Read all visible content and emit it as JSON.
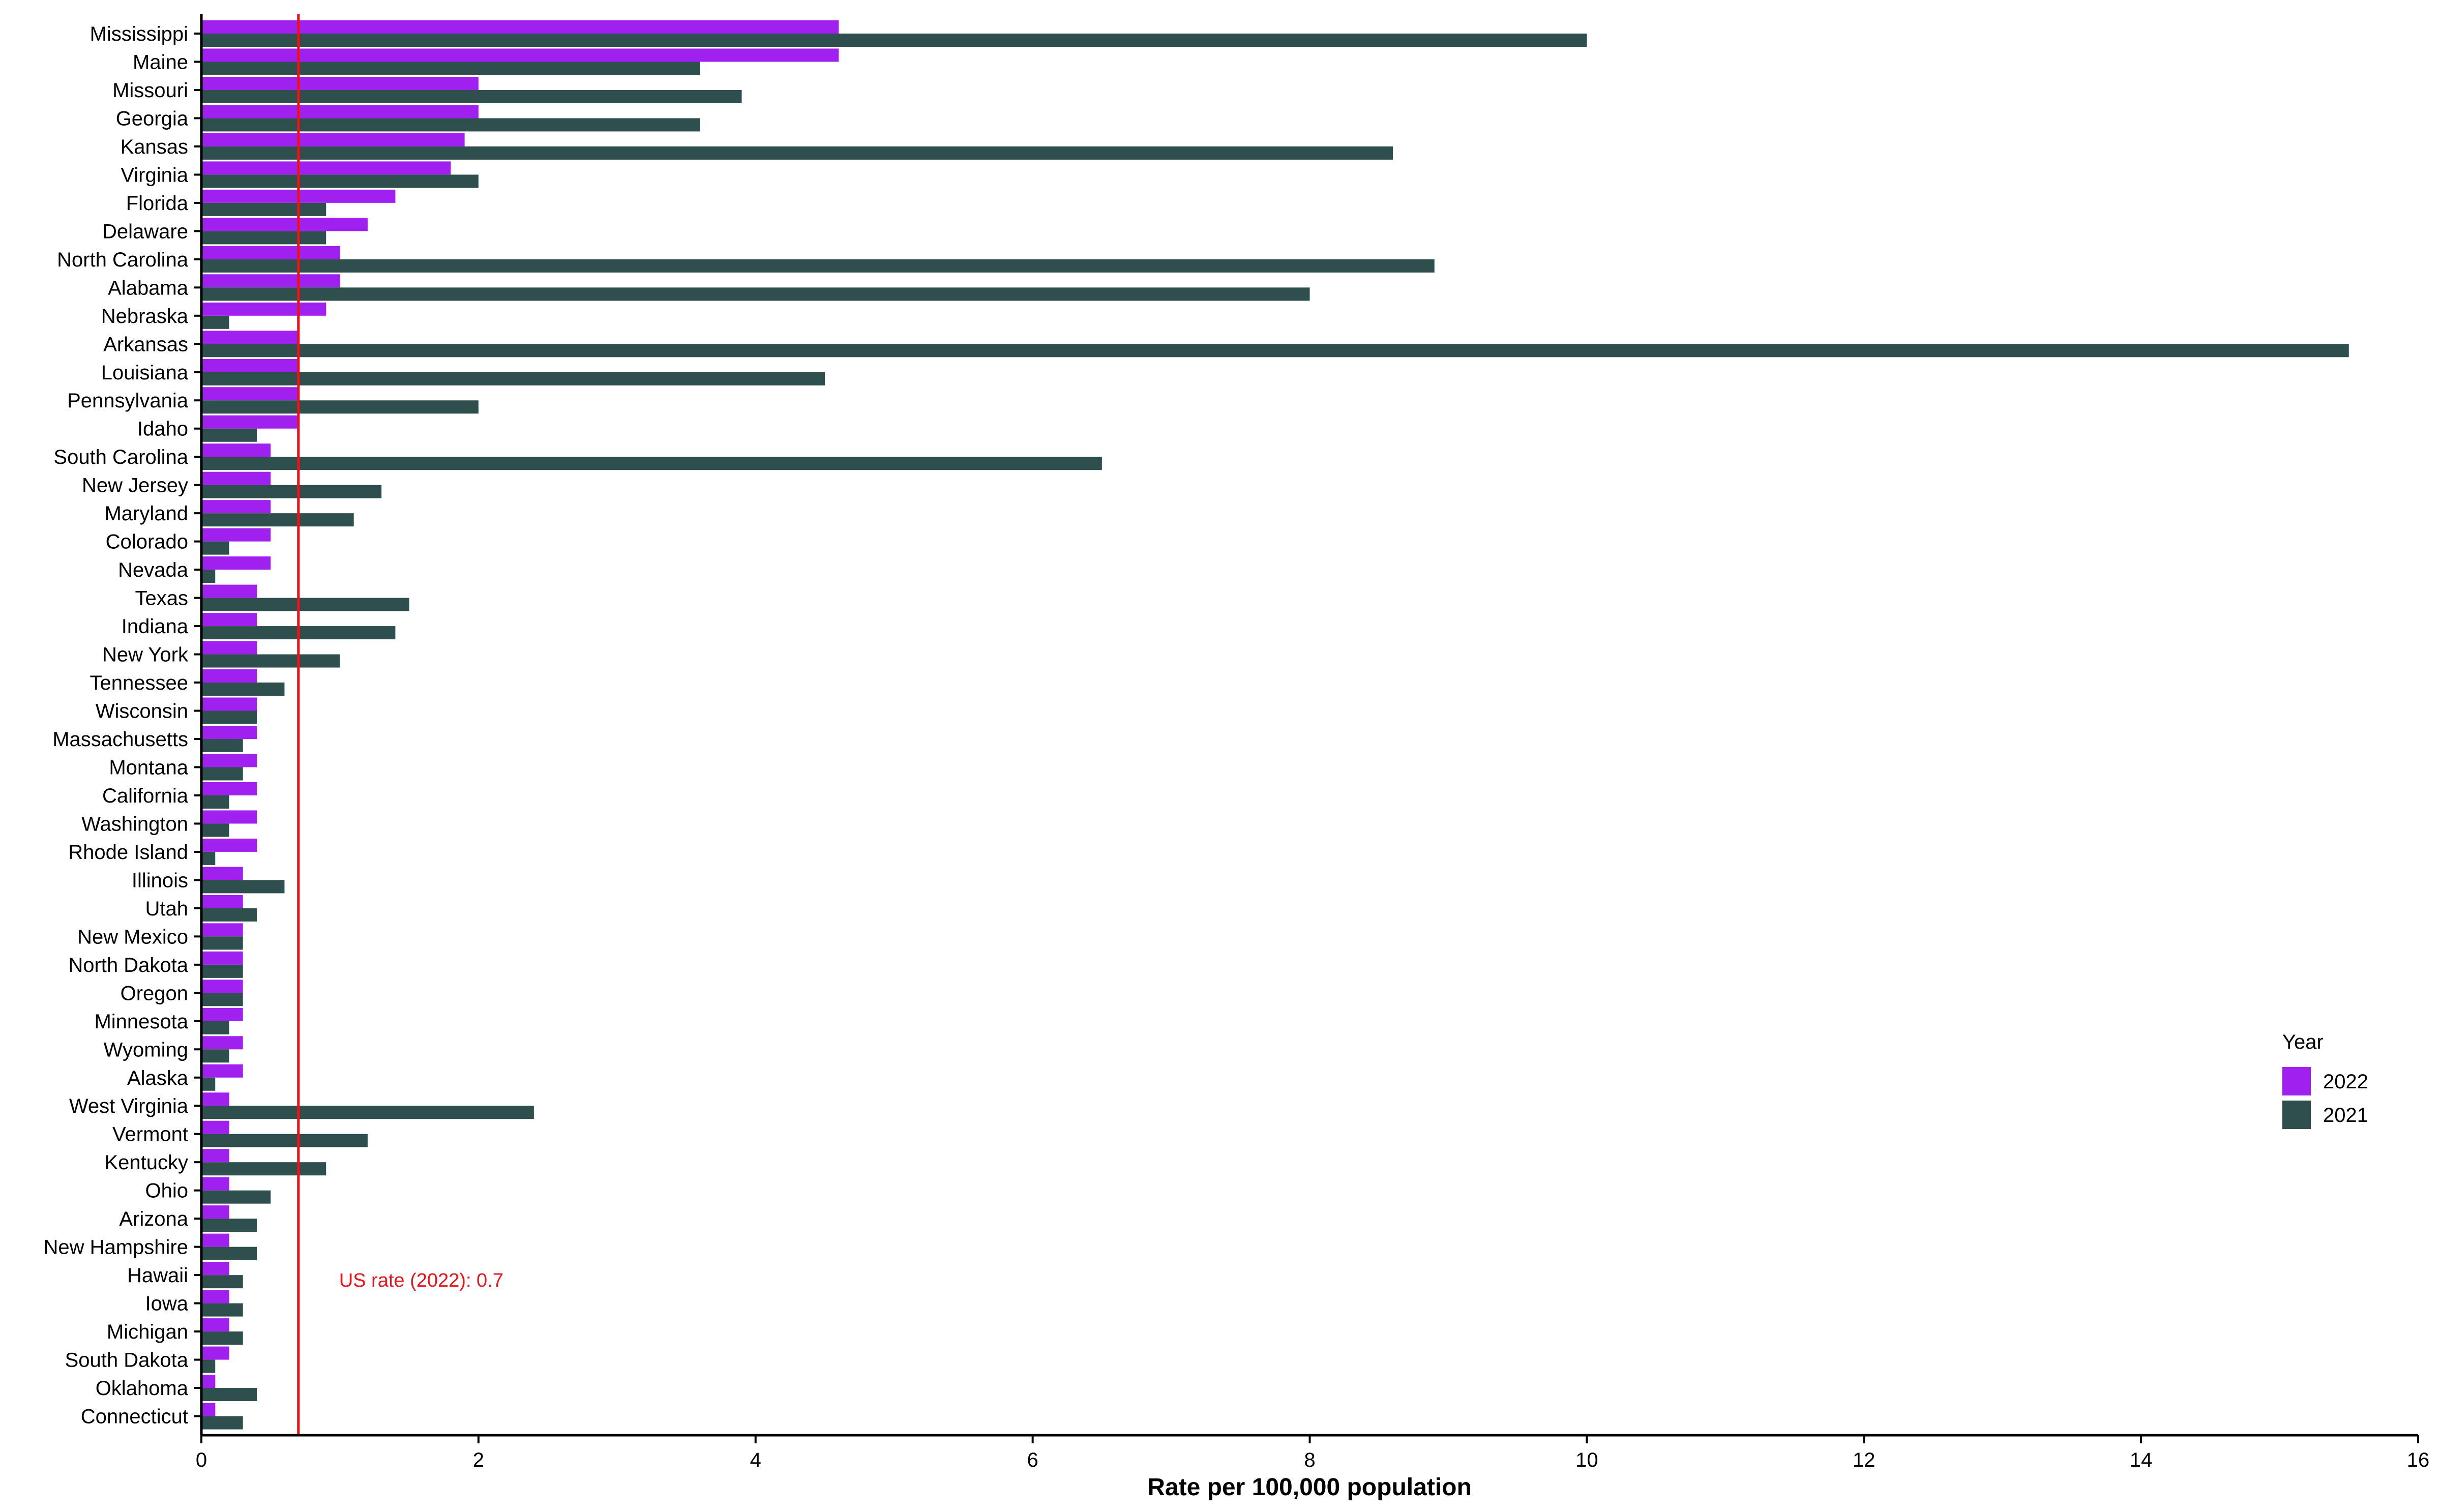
{
  "chart_data": {
    "type": "bar",
    "orientation": "horizontal",
    "title": "",
    "xlabel": "Rate per 100,000 population",
    "ylabel": "",
    "xlim": [
      0,
      16
    ],
    "xticks": [
      0,
      2,
      4,
      6,
      8,
      10,
      12,
      14,
      16
    ],
    "grid": false,
    "legend": {
      "title": "Year",
      "position": "right"
    },
    "categories": [
      "Mississippi",
      "Maine",
      "Missouri",
      "Georgia",
      "Kansas",
      "Virginia",
      "Florida",
      "Delaware",
      "North Carolina",
      "Alabama",
      "Nebraska",
      "Arkansas",
      "Louisiana",
      "Pennsylvania",
      "Idaho",
      "South Carolina",
      "New Jersey",
      "Maryland",
      "Colorado",
      "Nevada",
      "Texas",
      "Indiana",
      "New York",
      "Tennessee",
      "Wisconsin",
      "Massachusetts",
      "Montana",
      "California",
      "Washington",
      "Rhode Island",
      "Illinois",
      "Utah",
      "New Mexico",
      "North Dakota",
      "Oregon",
      "Minnesota",
      "Wyoming",
      "Alaska",
      "West Virginia",
      "Vermont",
      "Kentucky",
      "Ohio",
      "Arizona",
      "New Hampshire",
      "Hawaii",
      "Iowa",
      "Michigan",
      "South Dakota",
      "Oklahoma",
      "Connecticut"
    ],
    "series": [
      {
        "name": "2022",
        "color": "#a020f0",
        "values": [
          4.6,
          4.6,
          2.0,
          2.0,
          1.9,
          1.8,
          1.4,
          1.2,
          1.0,
          1.0,
          0.9,
          0.7,
          0.7,
          0.7,
          0.7,
          0.5,
          0.5,
          0.5,
          0.5,
          0.5,
          0.4,
          0.4,
          0.4,
          0.4,
          0.4,
          0.4,
          0.4,
          0.4,
          0.4,
          0.4,
          0.3,
          0.3,
          0.3,
          0.3,
          0.3,
          0.3,
          0.3,
          0.3,
          0.2,
          0.2,
          0.2,
          0.2,
          0.2,
          0.2,
          0.2,
          0.2,
          0.2,
          0.2,
          0.1,
          0.1
        ]
      },
      {
        "name": "2021",
        "color": "#2f4f4f",
        "values": [
          10.0,
          3.6,
          3.9,
          3.6,
          8.6,
          2.0,
          0.9,
          0.9,
          8.9,
          8.0,
          0.2,
          15.5,
          4.5,
          2.0,
          0.4,
          6.5,
          1.3,
          1.1,
          0.2,
          0.1,
          1.5,
          1.4,
          1.0,
          0.6,
          0.4,
          0.3,
          0.3,
          0.2,
          0.2,
          0.1,
          0.6,
          0.4,
          0.3,
          0.3,
          0.3,
          0.2,
          0.2,
          0.1,
          2.4,
          1.2,
          0.9,
          0.5,
          0.4,
          0.4,
          0.3,
          0.3,
          0.3,
          0.1,
          0.4,
          0.3
        ]
      }
    ],
    "reference_line": {
      "value": 0.7,
      "label": "US rate (2022): 0.7",
      "color": "#e8141c"
    }
  }
}
